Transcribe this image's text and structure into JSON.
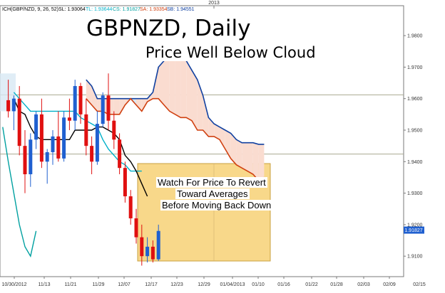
{
  "header": {
    "indicator_label": "ICH(GBP/NZD, 9, 26, 52)",
    "sl": "SL: 1.93064",
    "tl": "TL: 1.93644",
    "cs": "CS: 1.91827",
    "sa": "SA: 1.93354",
    "sb": "SB: 1.94551"
  },
  "colors": {
    "sl": "#000000",
    "tl": "#00b0c8",
    "cs": "#00a0a0",
    "sa": "#d04010",
    "sb": "#1040a0",
    "bull": "#2060d0",
    "bear": "#e01010",
    "cloud_bull": "#d8e8f4",
    "cloud_bear": "#fadcd0",
    "highlight_fill": "#f8d88a",
    "highlight_stroke": "#c8a040"
  },
  "annotation": {
    "title": "GBPNZD, Daily",
    "subtitle": "Price Well Below Cloud",
    "note": [
      "Watch For Price To Revert",
      "Toward Averages",
      "Before Moving Back Down"
    ]
  },
  "chart_data": {
    "type": "candlestick",
    "title": "GBPNZD, Daily",
    "subtitle": "Price Well Below Cloud",
    "x_top_label": "2013",
    "x_tick_labels": [
      "10/30/2012",
      "11/13",
      "11/21",
      "11/29",
      "12/07",
      "12/17",
      "12/23",
      "12/29",
      "01/04/2013",
      "01/10",
      "01/16",
      "01/22",
      "01/28",
      "02/03",
      "02/09",
      "02/15"
    ],
    "y_tick_labels": [
      "1.9800",
      "1.9700",
      "1.9600",
      "1.9500",
      "1.9400",
      "1.9300",
      "1.9200",
      "1.9100"
    ],
    "ylim": [
      1.9035,
      1.9895
    ],
    "current_price_label": "1.91827",
    "horizontal_lines": [
      1.9612,
      1.9424
    ],
    "candles": [
      {
        "o": 1.9595,
        "h": 1.966,
        "l": 1.954,
        "c": 1.956
      },
      {
        "o": 1.956,
        "h": 1.961,
        "l": 1.95,
        "c": 1.96
      },
      {
        "o": 1.96,
        "h": 1.964,
        "l": 1.942,
        "c": 1.945
      },
      {
        "o": 1.945,
        "h": 1.95,
        "l": 1.93,
        "c": 1.936
      },
      {
        "o": 1.936,
        "h": 1.949,
        "l": 1.932,
        "c": 1.947
      },
      {
        "o": 1.947,
        "h": 1.956,
        "l": 1.944,
        "c": 1.955
      },
      {
        "o": 1.955,
        "h": 1.96,
        "l": 1.938,
        "c": 1.94
      },
      {
        "o": 1.94,
        "h": 1.944,
        "l": 1.933,
        "c": 1.943
      },
      {
        "o": 1.943,
        "h": 1.95,
        "l": 1.939,
        "c": 1.948
      },
      {
        "o": 1.948,
        "h": 1.956,
        "l": 1.94,
        "c": 1.941
      },
      {
        "o": 1.941,
        "h": 1.956,
        "l": 1.94,
        "c": 1.954
      },
      {
        "o": 1.954,
        "h": 1.96,
        "l": 1.95,
        "c": 1.953
      },
      {
        "o": 1.953,
        "h": 1.966,
        "l": 1.95,
        "c": 1.964
      },
      {
        "o": 1.964,
        "h": 1.965,
        "l": 1.952,
        "c": 1.955
      },
      {
        "o": 1.955,
        "h": 1.96,
        "l": 1.942,
        "c": 1.945
      },
      {
        "o": 1.945,
        "h": 1.948,
        "l": 1.936,
        "c": 1.94
      },
      {
        "o": 1.94,
        "h": 1.956,
        "l": 1.939,
        "c": 1.952
      },
      {
        "o": 1.952,
        "h": 1.962,
        "l": 1.951,
        "c": 1.961
      },
      {
        "o": 1.961,
        "h": 1.968,
        "l": 1.95,
        "c": 1.953
      },
      {
        "o": 1.953,
        "h": 1.956,
        "l": 1.944,
        "c": 1.947
      },
      {
        "o": 1.947,
        "h": 1.949,
        "l": 1.936,
        "c": 1.938
      },
      {
        "o": 1.938,
        "h": 1.94,
        "l": 1.927,
        "c": 1.929
      },
      {
        "o": 1.929,
        "h": 1.931,
        "l": 1.92,
        "c": 1.922
      },
      {
        "o": 1.922,
        "h": 1.925,
        "l": 1.914,
        "c": 1.916
      },
      {
        "o": 1.916,
        "h": 1.92,
        "l": 1.907,
        "c": 1.91
      },
      {
        "o": 1.91,
        "h": 1.916,
        "l": 1.908,
        "c": 1.913
      },
      {
        "o": 1.913,
        "h": 1.915,
        "l": 1.908,
        "c": 1.909
      },
      {
        "o": 1.909,
        "h": 1.92,
        "l": 1.9085,
        "c": 1.918
      }
    ],
    "lines": {
      "tenkan_sl": [
        1.96,
        1.956,
        1.955,
        1.951,
        1.948,
        1.947,
        1.947,
        1.947,
        1.947,
        1.947,
        1.947,
        1.95,
        1.95,
        1.95,
        1.95,
        1.951,
        1.951,
        1.95,
        1.949,
        1.947,
        1.942,
        1.94,
        1.937,
        1.933,
        1.929
      ],
      "kijun_tl": [
        1.962,
        1.96,
        1.958,
        1.956,
        1.956,
        1.956,
        1.956,
        1.956,
        1.956,
        1.956,
        1.956,
        1.956,
        1.954,
        1.953,
        1.952,
        1.951,
        1.947,
        1.944,
        1.942,
        1.94,
        1.939,
        1.937,
        1.937,
        1.937
      ],
      "chikou_cs": [
        1.951,
        1.94,
        1.93,
        1.92,
        1.913,
        1.91,
        1.918
      ]
    },
    "cloud": {
      "span_a_sa": [
        1.96,
        1.958,
        1.956,
        1.956,
        1.955,
        1.955,
        1.955,
        1.958,
        1.96,
        1.958,
        1.956,
        1.959,
        1.96,
        1.96,
        1.958,
        1.956,
        1.955,
        1.954,
        1.954,
        1.953,
        1.95,
        1.95,
        1.948,
        1.948,
        1.947,
        1.944,
        1.941,
        1.939,
        1.938,
        1.937,
        1.936,
        1.934,
        1.935
      ],
      "span_b_sb": [
        1.966,
        1.964,
        1.96,
        1.96,
        1.96,
        1.96,
        1.96,
        1.96,
        1.96,
        1.96,
        1.96,
        1.96,
        1.962,
        1.97,
        1.972,
        1.973,
        1.973,
        1.973,
        1.972,
        1.969,
        1.966,
        1.961,
        1.954,
        1.952,
        1.951,
        1.95,
        1.949,
        1.947,
        1.946,
        1.946,
        1.946,
        1.9455,
        1.9455
      ]
    },
    "grid": false,
    "legend": "top-left"
  }
}
